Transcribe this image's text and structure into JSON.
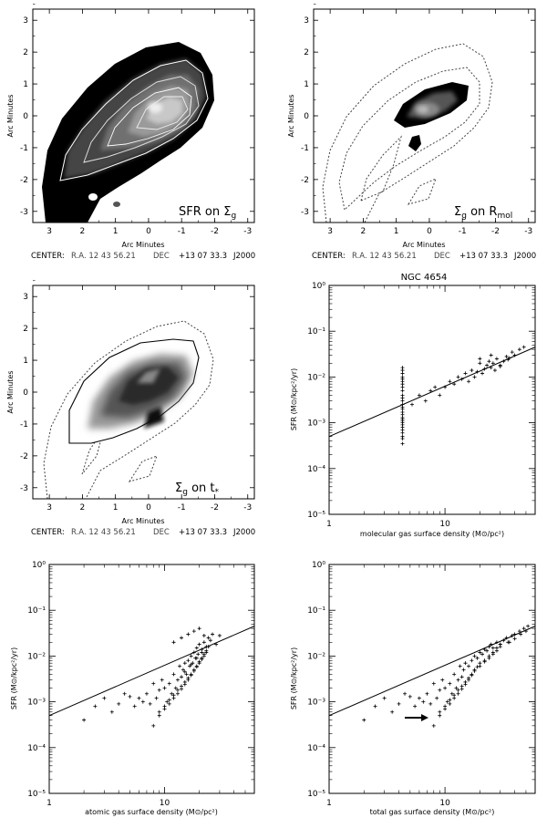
{
  "map_panels": [
    {
      "label": "SFR on Σ",
      "label_sub": "g",
      "x_label": "Arc Minutes",
      "y_label": "Arc Minutes",
      "x_ticks": [
        "3",
        "2",
        "1",
        "0",
        "-1",
        "-2",
        "-3"
      ],
      "y_ticks": [
        "3",
        "2",
        "1",
        "0",
        "-1",
        "-2",
        "-3"
      ],
      "caption": {
        "center": "CENTER:",
        "ra": "R.A. 12 43 56.21",
        "dec": "DEC",
        "dec_value": "+13 07 33.3",
        "epoch": "J2000"
      }
    },
    {
      "label": "Σ",
      "label_sub": "g",
      "label_mid": " on R",
      "label_sub2": "mol",
      "x_label": "Arc Minutes",
      "y_label": "Arc Minutes",
      "x_ticks": [
        "3",
        "2",
        "1",
        "0",
        "-1",
        "-2",
        "-3"
      ],
      "y_ticks": [
        "3",
        "2",
        "1",
        "0",
        "-1",
        "-2",
        "-3"
      ],
      "caption": {
        "center": "CENTER:",
        "ra": "R.A. 12 43 56.21",
        "dec": "DEC",
        "dec_value": "+13 07 33.3",
        "epoch": "J2000"
      }
    },
    {
      "label": "Σ",
      "label_sub": "g",
      "label_mid": " on t",
      "label_sub2": "*",
      "x_label": "Arc Minutes",
      "y_label": "Arc Minutes",
      "x_ticks": [
        "3",
        "2",
        "1",
        "0",
        "-1",
        "-2",
        "-3"
      ],
      "y_ticks": [
        "3",
        "2",
        "1",
        "0",
        "-1",
        "-2",
        "-3"
      ],
      "caption": {
        "center": "CENTER:",
        "ra": "R.A. 12 43 56.21",
        "dec": "DEC",
        "dec_value": "+13 07 33.3",
        "epoch": "J2000"
      }
    }
  ],
  "scatter_panels": [
    {
      "title": "NGC 4654",
      "y_label": "SFR (M⊙/kpc²/yr)",
      "x_label": "molecular gas surface density (M⊙/pc²)"
    },
    {
      "title": "",
      "y_label": "SFR (M⊙/kpc²/yr)",
      "x_label": "atomic gas surface density (M⊙/pc²)"
    },
    {
      "title": "",
      "y_label": "SFR (M⊙/kpc²/yr)",
      "x_label": "total gas surface density (M⊙/pc²)"
    }
  ],
  "log_ticks": {
    "x": [
      "1",
      "10"
    ],
    "y": [
      "10⁰",
      "10⁻¹",
      "10⁻²",
      "10⁻³",
      "10⁻⁴",
      "10⁻⁵"
    ]
  },
  "chart_data": [
    {
      "type": "scatter",
      "title": "NGC 4654",
      "xlabel": "molecular gas surface density (M⊙/pc²)",
      "ylabel": "SFR (M⊙/kpc²/yr)",
      "xscale": "log",
      "yscale": "log",
      "xlim": [
        1,
        60
      ],
      "ylim": [
        1e-05,
        1
      ],
      "fit_line": [
        [
          1,
          0.0005
        ],
        [
          60,
          0.045
        ]
      ],
      "x": [
        4.3,
        4.3,
        4.3,
        4.3,
        4.3,
        4.3,
        4.3,
        4.3,
        4.3,
        4.3,
        4.3,
        4.3,
        4.3,
        4.3,
        4.3,
        4.3,
        4.3,
        4.3,
        4.3,
        4.3,
        4.3,
        4.3,
        4.3,
        4.3,
        4.3,
        4.3,
        4.3,
        4.3,
        5.2,
        6.0,
        6.8,
        7.5,
        8.2,
        9.0,
        10,
        11,
        12,
        13,
        14,
        15,
        16,
        17,
        18,
        19,
        20,
        21,
        22,
        23,
        24,
        25,
        26,
        27,
        28,
        30,
        32,
        34,
        36,
        38,
        40,
        44,
        48,
        20,
        25,
        30,
        35
      ],
      "y": [
        0.00035,
        0.00045,
        0.0005,
        0.0006,
        0.0007,
        0.0008,
        0.0009,
        0.001,
        0.0011,
        0.0012,
        0.0013,
        0.0015,
        0.0017,
        0.002,
        0.0022,
        0.0025,
        0.003,
        0.0035,
        0.004,
        0.005,
        0.006,
        0.007,
        0.008,
        0.009,
        0.01,
        0.012,
        0.014,
        0.016,
        0.0025,
        0.004,
        0.003,
        0.005,
        0.006,
        0.004,
        0.006,
        0.008,
        0.007,
        0.01,
        0.009,
        0.012,
        0.008,
        0.014,
        0.01,
        0.013,
        0.02,
        0.012,
        0.015,
        0.018,
        0.022,
        0.016,
        0.02,
        0.014,
        0.025,
        0.018,
        0.022,
        0.028,
        0.026,
        0.035,
        0.03,
        0.04,
        0.045,
        0.025,
        0.03,
        0.017,
        0.024
      ]
    },
    {
      "type": "scatter",
      "xlabel": "atomic gas surface density (M⊙/pc²)",
      "ylabel": "SFR (M⊙/kpc²/yr)",
      "xscale": "log",
      "yscale": "log",
      "xlim": [
        1,
        60
      ],
      "ylim": [
        1e-05,
        1
      ],
      "fit_line": [
        [
          1,
          0.0005
        ],
        [
          60,
          0.045
        ]
      ],
      "x": [
        2.0,
        2.5,
        3.0,
        3.5,
        4.0,
        4.5,
        5.0,
        5.5,
        6.0,
        6.5,
        7.0,
        7.5,
        8.0,
        8.5,
        9.0,
        9.5,
        10,
        10.5,
        11,
        11.5,
        12,
        12.5,
        13,
        13.5,
        14,
        14.5,
        15,
        15.5,
        16,
        16.5,
        17,
        17.5,
        18,
        18.5,
        19,
        19.5,
        20,
        21,
        22,
        23,
        24,
        25,
        26,
        28,
        30,
        9,
        10,
        11,
        12,
        13,
        14,
        15,
        16,
        17,
        18,
        19,
        20,
        21,
        22,
        23,
        24,
        8,
        9,
        10,
        11,
        12,
        13,
        14,
        15,
        16,
        17,
        18,
        19,
        20,
        21,
        22,
        23,
        12,
        14,
        16,
        18,
        20,
        22,
        15,
        17,
        19,
        21
      ],
      "y": [
        0.0004,
        0.0008,
        0.0012,
        0.0006,
        0.0009,
        0.0015,
        0.0013,
        0.0008,
        0.0012,
        0.001,
        0.0015,
        0.0009,
        0.0025,
        0.0012,
        0.0018,
        0.003,
        0.002,
        0.001,
        0.0025,
        0.0015,
        0.004,
        0.002,
        0.003,
        0.006,
        0.0035,
        0.005,
        0.007,
        0.004,
        0.008,
        0.006,
        0.01,
        0.007,
        0.012,
        0.009,
        0.015,
        0.011,
        0.018,
        0.014,
        0.02,
        0.016,
        0.025,
        0.022,
        0.03,
        0.018,
        0.028,
        0.0006,
        0.0008,
        0.0011,
        0.0014,
        0.0018,
        0.0022,
        0.0027,
        0.0033,
        0.004,
        0.005,
        0.006,
        0.0075,
        0.009,
        0.011,
        0.013,
        0.016,
        0.0003,
        0.0005,
        0.0007,
        0.0009,
        0.0012,
        0.0015,
        0.0019,
        0.0024,
        0.003,
        0.0038,
        0.0047,
        0.0058,
        0.007,
        0.0085,
        0.01,
        0.012,
        0.02,
        0.025,
        0.03,
        0.035,
        0.04,
        0.028,
        0.0045,
        0.0065,
        0.009,
        0.012
      ]
    },
    {
      "type": "scatter",
      "xlabel": "total gas surface density (M⊙/pc²)",
      "ylabel": "SFR (M⊙/kpc²/yr)",
      "xscale": "log",
      "yscale": "log",
      "xlim": [
        1,
        60
      ],
      "ylim": [
        1e-05,
        1
      ],
      "fit_line": [
        [
          1,
          0.0005
        ],
        [
          60,
          0.045
        ]
      ],
      "arrow": {
        "from": [
          4.5,
          0.00045
        ],
        "to": [
          7.2,
          0.00045
        ]
      },
      "x": [
        2.0,
        2.5,
        3.0,
        3.5,
        4.0,
        4.5,
        5.0,
        5.5,
        6.0,
        6.5,
        7.0,
        7.5,
        8.0,
        8.5,
        9.0,
        9.5,
        10,
        10.5,
        11,
        11.5,
        12,
        12.5,
        13,
        13.5,
        14,
        14.5,
        15,
        16,
        17,
        18,
        19,
        20,
        21,
        22,
        23,
        24,
        25,
        26,
        28,
        30,
        32,
        34,
        36,
        38,
        40,
        44,
        48,
        52,
        8,
        9,
        10,
        11,
        12,
        13,
        14,
        15,
        16,
        17,
        18,
        19,
        20,
        22,
        24,
        26,
        28,
        30,
        9,
        10,
        11,
        12,
        13,
        14,
        15,
        16,
        17,
        18,
        20,
        22,
        24,
        26,
        28,
        30,
        35,
        40,
        45,
        50
      ],
      "y": [
        0.0004,
        0.0008,
        0.0012,
        0.0006,
        0.0009,
        0.0015,
        0.0013,
        0.0008,
        0.0012,
        0.001,
        0.0015,
        0.0009,
        0.0025,
        0.0012,
        0.0018,
        0.003,
        0.002,
        0.001,
        0.0025,
        0.0015,
        0.004,
        0.002,
        0.003,
        0.006,
        0.0035,
        0.005,
        0.007,
        0.006,
        0.008,
        0.01,
        0.009,
        0.012,
        0.011,
        0.014,
        0.013,
        0.016,
        0.018,
        0.015,
        0.02,
        0.018,
        0.022,
        0.025,
        0.02,
        0.028,
        0.03,
        0.035,
        0.04,
        0.045,
        0.0003,
        0.0005,
        0.0007,
        0.0009,
        0.0012,
        0.0015,
        0.0019,
        0.0024,
        0.003,
        0.0038,
        0.0047,
        0.0058,
        0.007,
        0.008,
        0.01,
        0.012,
        0.015,
        0.018,
        0.0006,
        0.0008,
        0.0011,
        0.0014,
        0.0018,
        0.0022,
        0.0027,
        0.0033,
        0.004,
        0.005,
        0.006,
        0.0075,
        0.009,
        0.011,
        0.013,
        0.016,
        0.02,
        0.024,
        0.03,
        0.035
      ]
    }
  ]
}
